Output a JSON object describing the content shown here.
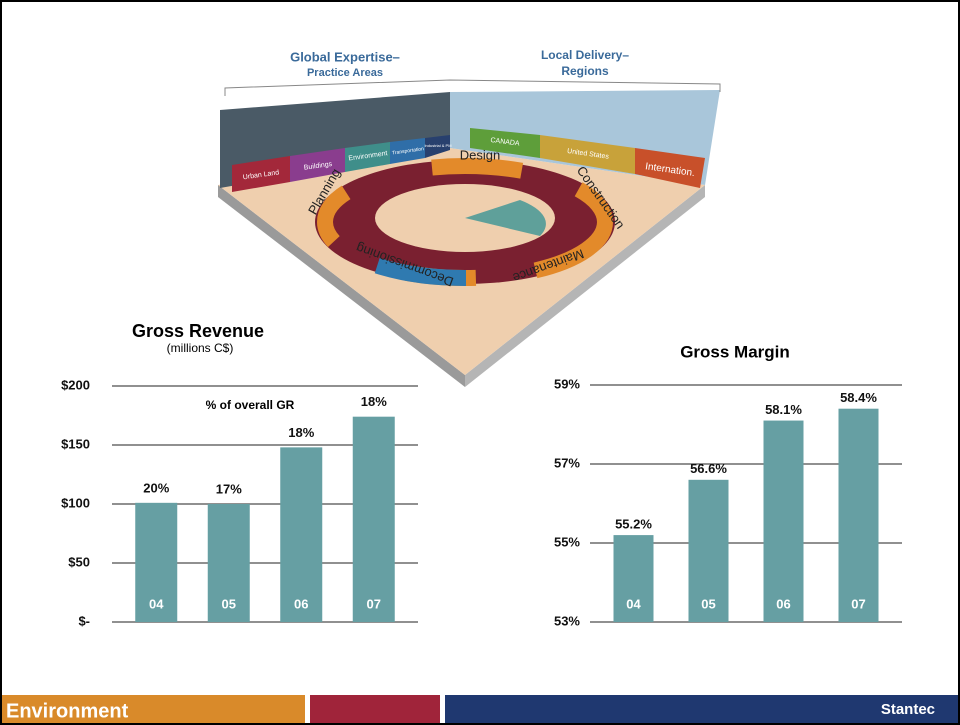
{
  "diagram": {
    "left_heading": [
      "Global Expertise–",
      "Practice Areas"
    ],
    "right_heading": [
      "Local Delivery–",
      "Regions"
    ],
    "practice_areas": [
      "Urban Land",
      "Buildings",
      "Environment",
      "Transportation",
      "Industrial & PM"
    ],
    "regions": [
      "CANADA",
      "United States",
      "Internation."
    ],
    "lifecycle": [
      "Design",
      "Construction",
      "Maintenance",
      "Decommissioning",
      "Planning"
    ]
  },
  "chart_data": [
    {
      "type": "bar",
      "title": "Gross Revenue",
      "subtitle": "(millions C$)",
      "categories": [
        "04",
        "05",
        "06",
        "07"
      ],
      "values": [
        101,
        100,
        148,
        174
      ],
      "color": "#669fa3",
      "ylim": [
        0,
        200
      ],
      "yticks": [
        {
          "value": 0,
          "label": "$-"
        },
        {
          "value": 50,
          "label": "$50"
        },
        {
          "value": 100,
          "label": "$100"
        },
        {
          "value": 150,
          "label": "$150"
        },
        {
          "value": 200,
          "label": "$200"
        }
      ],
      "grid": true,
      "annotation": "% of overall GR",
      "share_labels": [
        "20%",
        "17%",
        "18%",
        "18%"
      ]
    },
    {
      "type": "bar",
      "title": "Gross Margin",
      "categories": [
        "04",
        "05",
        "06",
        "07"
      ],
      "values": [
        55.2,
        56.6,
        58.1,
        58.4
      ],
      "value_labels": [
        "55.2%",
        "56.6%",
        "58.1%",
        "58.4%"
      ],
      "color": "#669fa3",
      "ylim": [
        53,
        59
      ],
      "yticks": [
        {
          "value": 53,
          "label": "53%"
        },
        {
          "value": 55,
          "label": "55%"
        },
        {
          "value": 57,
          "label": "57%"
        },
        {
          "value": 59,
          "label": "59%"
        }
      ],
      "grid": true
    }
  ],
  "footer": {
    "section": "Environment",
    "brand": "Stantec"
  }
}
